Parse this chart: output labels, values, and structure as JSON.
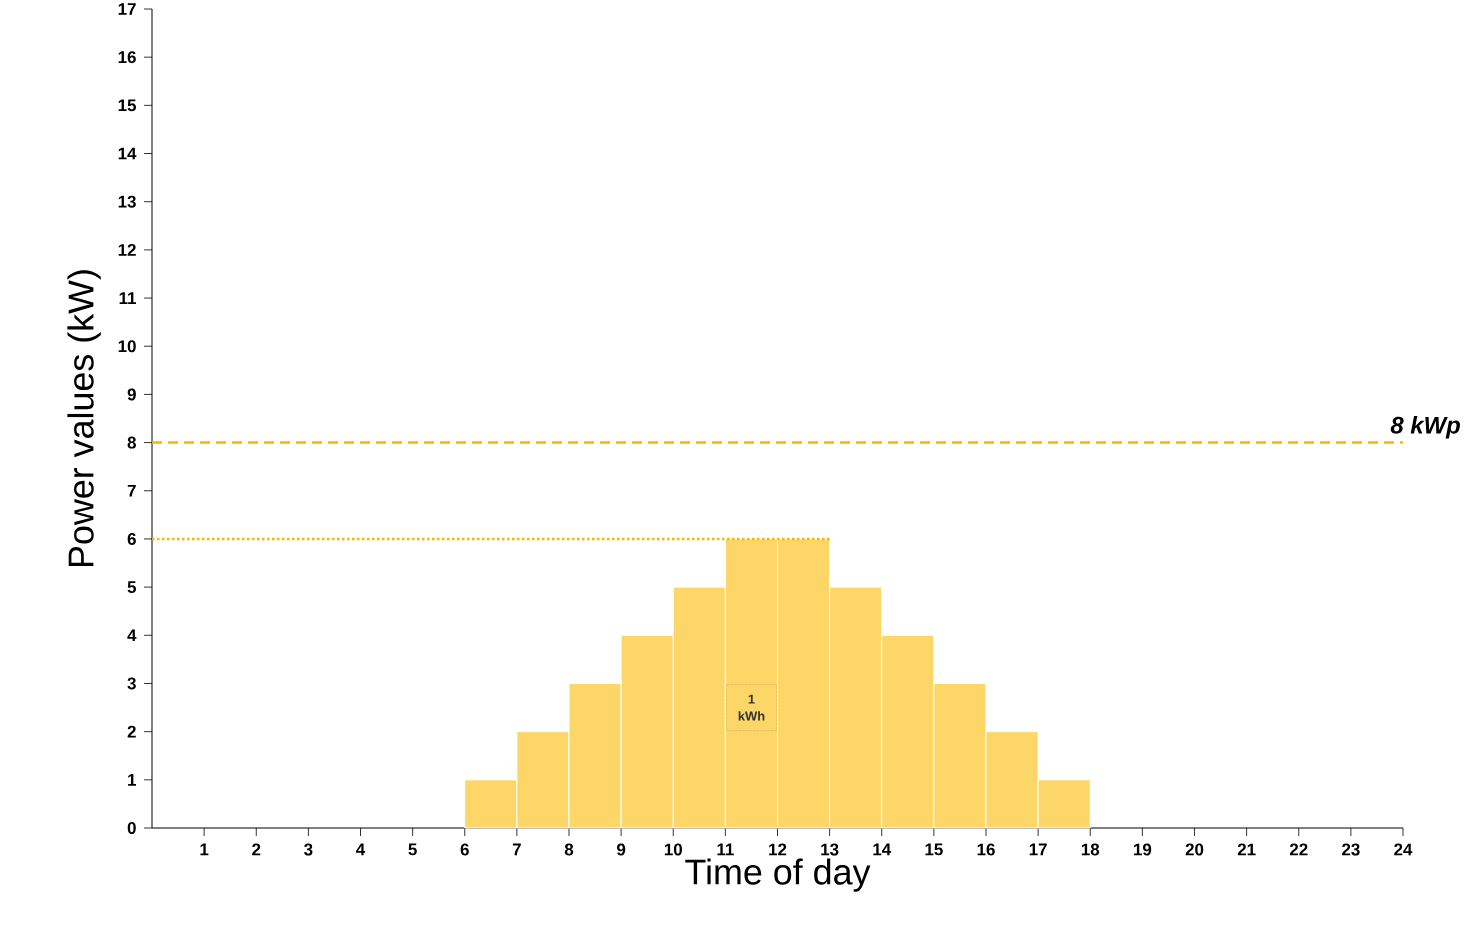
{
  "chart_data": {
    "type": "bar",
    "xlabel": "Time of day",
    "ylabel": "Power values (kW)",
    "x": [
      6.5,
      7.5,
      8.5,
      9.5,
      10.5,
      11.5,
      12.5,
      13.5,
      14.5,
      15.5,
      16.5,
      17.5
    ],
    "series": [
      {
        "color": "#fcd667",
        "values": [
          1,
          2,
          3,
          4,
          5,
          6,
          6,
          5,
          4,
          3,
          2,
          1
        ]
      },
      {
        "type": "line",
        "color": "#f5b800",
        "line_style": "dotted",
        "x": [
          0,
          13
        ],
        "values": [
          6,
          6
        ]
      }
    ],
    "xlim": [
      0,
      24
    ],
    "xticks": [
      1,
      2,
      3,
      4,
      5,
      6,
      7,
      8,
      9,
      10,
      11,
      12,
      13,
      14,
      15,
      16,
      17,
      18,
      19,
      20,
      21,
      22,
      23,
      24
    ],
    "ylim": [
      0,
      17
    ],
    "yticks": [
      0,
      1,
      2,
      3,
      4,
      5,
      6,
      7,
      8,
      9,
      10,
      11,
      12,
      13,
      14,
      15,
      16,
      17
    ],
    "ref_lines": [
      {
        "axis": "y",
        "value": 8,
        "label": "8 kWp",
        "color": "#f5b800",
        "line_style": "dashed"
      }
    ],
    "annotations": [
      "1 kWh"
    ]
  }
}
